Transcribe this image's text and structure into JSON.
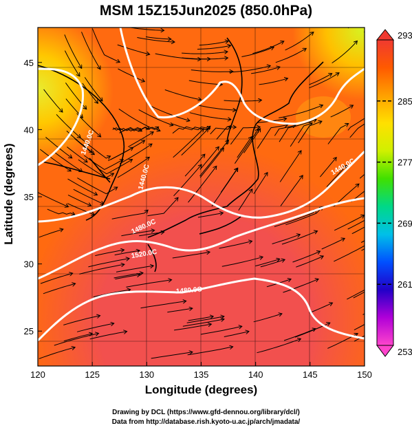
{
  "title": "MSM 15Z15Jun2025 (850.0hPa)",
  "xlabel": "Longitude (degrees)",
  "ylabel": "Latitude  (degrees)",
  "credits": [
    "Drawing by DCL (https://www.gfd-dennou.org/library/dcl/)",
    "Data from http://database.rish.kyoto-u.ac.jp/arch/jmadata/"
  ],
  "map": {
    "lon_range": [
      120,
      150
    ],
    "lat_range": [
      22.4,
      47.6
    ],
    "x_ticks": [
      "120",
      "125",
      "130",
      "135",
      "140",
      "145",
      "150"
    ],
    "y_ticks": [
      "25",
      "30",
      "35",
      "40",
      "45"
    ],
    "contour_labels": [
      "1440.0",
      "1440.0",
      "1480.0",
      "1520.0",
      "1480.0",
      "1440.0"
    ]
  },
  "colorbar": {
    "min": 253,
    "max": 293,
    "tick_labels": [
      "293",
      "285",
      "277",
      "269",
      "261",
      "253"
    ],
    "stops": [
      "#ff44cc",
      "#b000d8",
      "#2200c8",
      "#0050ff",
      "#00c0e8",
      "#00d888",
      "#40e000",
      "#d0f000",
      "#ffe000",
      "#ffa000",
      "#ff5a00",
      "#f03a30"
    ]
  },
  "colors": {
    "field_high": "#f0504a",
    "field_mid": "#ff6a00",
    "field_low": "#ffd400",
    "contour": "#ffffff"
  }
}
